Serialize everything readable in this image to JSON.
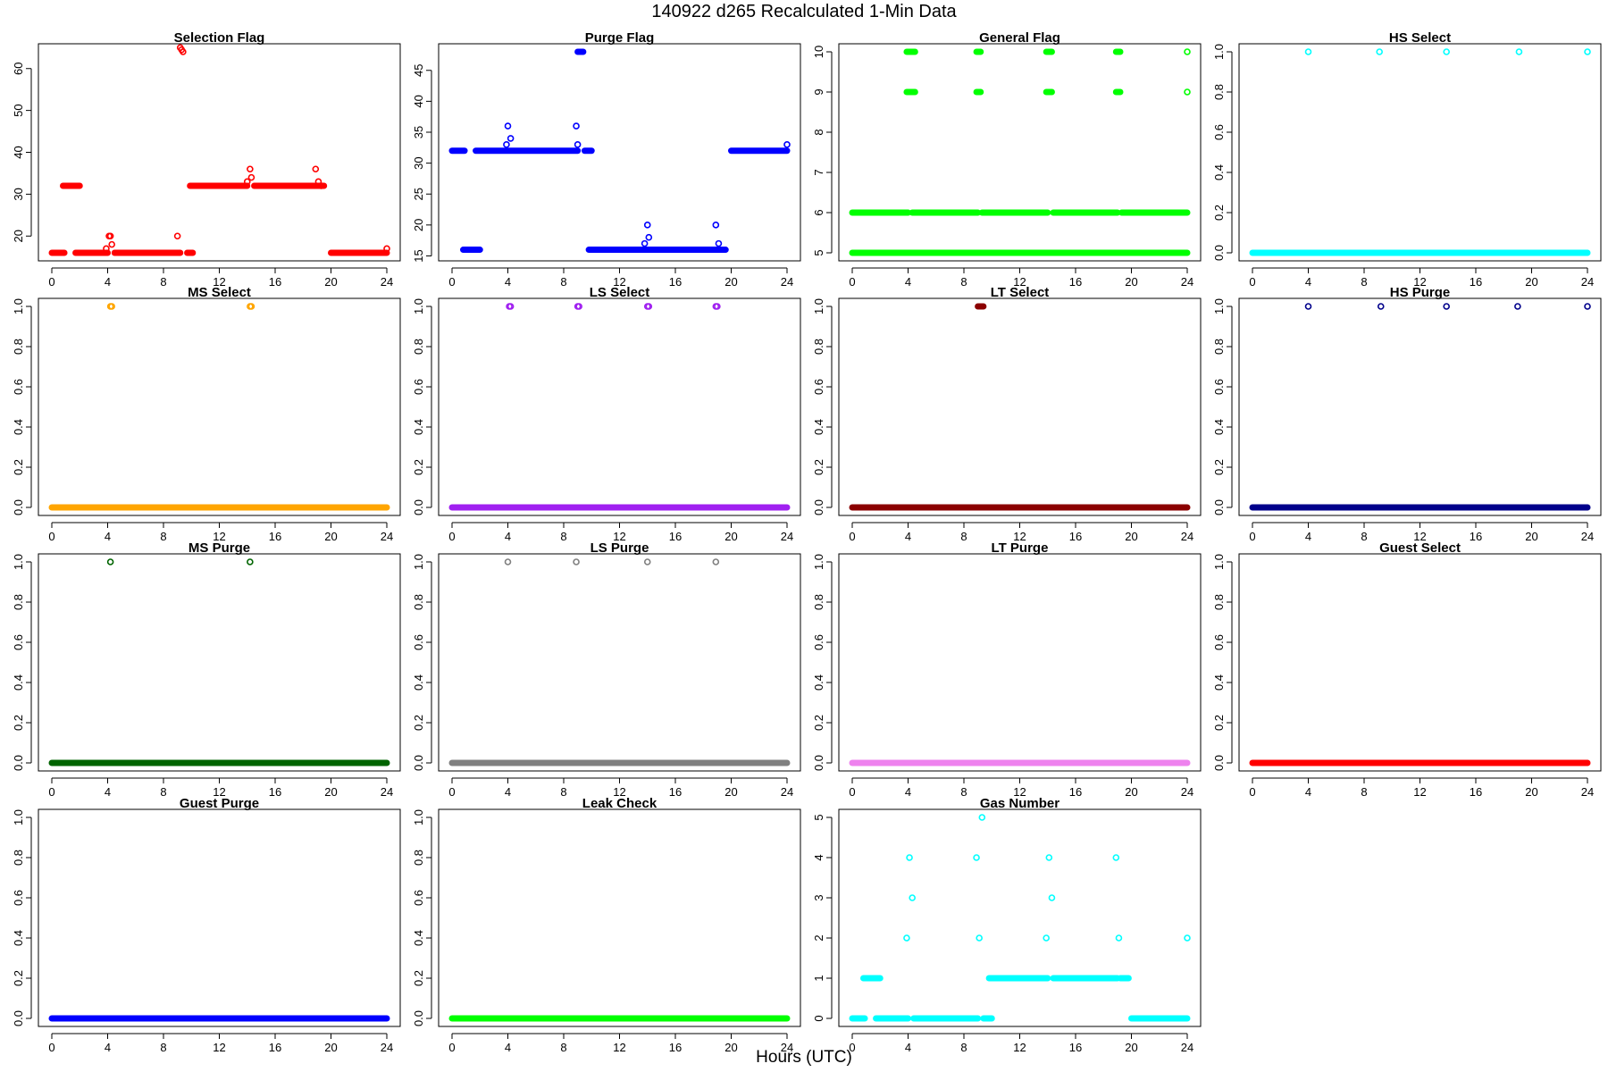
{
  "page": {
    "title": "140922   d265   Recalculated 1-Min Data",
    "xlabel": "Hours (UTC)"
  },
  "chart_data": [
    {
      "type": "scatter",
      "title": "Selection Flag",
      "color": "#ff0000",
      "xlim": [
        0,
        24
      ],
      "xticks": [
        0,
        4,
        8,
        12,
        16,
        20,
        24
      ],
      "ylim": [
        16,
        64
      ],
      "yticks": [
        20,
        30,
        40,
        50,
        60
      ],
      "runs": [
        [
          0,
          0.9,
          16
        ],
        [
          0.8,
          2,
          32
        ],
        [
          1.7,
          4,
          16
        ],
        [
          4.5,
          9.2,
          16
        ],
        [
          9.7,
          10.1,
          16
        ],
        [
          9.9,
          14,
          32
        ],
        [
          14.5,
          19.5,
          32
        ],
        [
          20,
          24,
          16
        ]
      ],
      "points": [
        [
          4.1,
          20
        ],
        [
          4.2,
          20
        ],
        [
          3.9,
          17
        ],
        [
          4.3,
          18
        ],
        [
          9.0,
          20
        ],
        [
          9.2,
          65
        ],
        [
          9.3,
          64.5
        ],
        [
          9.4,
          64
        ],
        [
          14,
          33
        ],
        [
          14.2,
          36
        ],
        [
          14.3,
          34
        ],
        [
          18.9,
          36
        ],
        [
          19.1,
          33
        ],
        [
          19.3,
          32
        ],
        [
          24,
          17
        ]
      ]
    },
    {
      "type": "scatter",
      "title": "Purge Flag",
      "color": "#0000ff",
      "xlim": [
        0,
        24
      ],
      "xticks": [
        0,
        4,
        8,
        12,
        16,
        20,
        24
      ],
      "ylim": [
        15.5,
        48
      ],
      "yticks": [
        15,
        20,
        25,
        30,
        35,
        40,
        45
      ],
      "runs": [
        [
          0,
          0.9,
          32
        ],
        [
          0.8,
          2,
          16
        ],
        [
          1.7,
          9,
          32
        ],
        [
          9,
          9.4,
          48
        ],
        [
          9.5,
          10,
          32
        ],
        [
          9.8,
          19.6,
          16
        ],
        [
          20,
          24,
          32
        ]
      ],
      "points": [
        [
          3.9,
          33
        ],
        [
          4.0,
          36
        ],
        [
          4.2,
          34
        ],
        [
          8.9,
          36
        ],
        [
          9.0,
          33
        ],
        [
          13.8,
          17
        ],
        [
          14.0,
          20
        ],
        [
          14.1,
          18
        ],
        [
          18.9,
          20
        ],
        [
          19.1,
          17
        ],
        [
          24,
          33
        ]
      ]
    },
    {
      "type": "scatter",
      "title": "General Flag",
      "color": "#00ff00",
      "xlim": [
        0,
        24
      ],
      "xticks": [
        0,
        4,
        8,
        12,
        16,
        20,
        24
      ],
      "ylim": [
        5,
        10
      ],
      "yticks": [
        5,
        6,
        7,
        8,
        9,
        10
      ],
      "runs": [
        [
          0,
          24,
          5
        ],
        [
          0,
          4,
          6
        ],
        [
          4.3,
          9,
          6
        ],
        [
          9.3,
          14,
          6
        ],
        [
          14.4,
          19,
          6
        ],
        [
          19.3,
          24,
          6
        ],
        [
          3.9,
          4.5,
          9
        ],
        [
          8.9,
          9.2,
          9
        ],
        [
          13.9,
          14.3,
          9
        ],
        [
          18.9,
          19.2,
          9
        ],
        [
          3.9,
          4.5,
          10
        ],
        [
          8.9,
          9.2,
          10
        ],
        [
          13.9,
          14.3,
          10
        ],
        [
          18.9,
          19.2,
          10
        ]
      ],
      "points": [
        [
          24,
          9
        ],
        [
          24,
          10
        ]
      ]
    },
    {
      "type": "scatter",
      "title": "HS Select",
      "color": "#00ffff",
      "xlim": [
        0,
        24
      ],
      "xticks": [
        0,
        4,
        8,
        12,
        16,
        20,
        24
      ],
      "ylim": [
        0,
        1
      ],
      "yticks": [
        0.0,
        0.2,
        0.4,
        0.6,
        0.8,
        1.0
      ],
      "runs": [
        [
          0,
          24,
          0
        ]
      ],
      "points": [
        [
          4,
          1
        ],
        [
          9.1,
          1
        ],
        [
          13.9,
          1
        ],
        [
          19.1,
          1
        ],
        [
          24,
          1
        ]
      ]
    },
    {
      "type": "scatter",
      "title": "MS Select",
      "color": "#ffa500",
      "xlim": [
        0,
        24
      ],
      "xticks": [
        0,
        4,
        8,
        12,
        16,
        20,
        24
      ],
      "ylim": [
        0,
        1
      ],
      "yticks": [
        0.0,
        0.2,
        0.4,
        0.6,
        0.8,
        1.0
      ],
      "runs": [
        [
          0,
          24,
          0
        ]
      ],
      "points": [
        [
          4.2,
          1
        ],
        [
          4.3,
          1
        ],
        [
          14.2,
          1
        ],
        [
          14.3,
          1
        ]
      ]
    },
    {
      "type": "scatter",
      "title": "LS Select",
      "color": "#a020f0",
      "xlim": [
        0,
        24
      ],
      "xticks": [
        0,
        4,
        8,
        12,
        16,
        20,
        24
      ],
      "ylim": [
        0,
        1
      ],
      "yticks": [
        0.0,
        0.2,
        0.4,
        0.6,
        0.8,
        1.0
      ],
      "runs": [
        [
          0,
          24,
          0
        ]
      ],
      "points": [
        [
          4.1,
          1
        ],
        [
          4.2,
          1
        ],
        [
          9.0,
          1
        ],
        [
          9.1,
          1
        ],
        [
          14.0,
          1
        ],
        [
          14.1,
          1
        ],
        [
          18.9,
          1
        ],
        [
          19.0,
          1
        ]
      ]
    },
    {
      "type": "scatter",
      "title": "LT Select",
      "color": "#8b0000",
      "xlim": [
        0,
        24
      ],
      "xticks": [
        0,
        4,
        8,
        12,
        16,
        20,
        24
      ],
      "ylim": [
        0,
        1
      ],
      "yticks": [
        0.0,
        0.2,
        0.4,
        0.6,
        0.8,
        1.0
      ],
      "runs": [
        [
          0,
          24,
          0
        ],
        [
          9.0,
          9.4,
          1
        ]
      ],
      "points": []
    },
    {
      "type": "scatter",
      "title": "HS Purge",
      "color": "#00008b",
      "xlim": [
        0,
        24
      ],
      "xticks": [
        0,
        4,
        8,
        12,
        16,
        20,
        24
      ],
      "ylim": [
        0,
        1
      ],
      "yticks": [
        0.0,
        0.2,
        0.4,
        0.6,
        0.8,
        1.0
      ],
      "runs": [
        [
          0,
          24,
          0
        ]
      ],
      "points": [
        [
          4,
          1
        ],
        [
          9.2,
          1
        ],
        [
          13.9,
          1
        ],
        [
          19.0,
          1
        ],
        [
          24,
          1
        ]
      ]
    },
    {
      "type": "scatter",
      "title": "MS Purge",
      "color": "#006400",
      "xlim": [
        0,
        24
      ],
      "xticks": [
        0,
        4,
        8,
        12,
        16,
        20,
        24
      ],
      "ylim": [
        0,
        1
      ],
      "yticks": [
        0.0,
        0.2,
        0.4,
        0.6,
        0.8,
        1.0
      ],
      "runs": [
        [
          0,
          24,
          0
        ]
      ],
      "points": [
        [
          4.2,
          1
        ],
        [
          14.2,
          1
        ]
      ]
    },
    {
      "type": "scatter",
      "title": "LS Purge",
      "color": "#808080",
      "xlim": [
        0,
        24
      ],
      "xticks": [
        0,
        4,
        8,
        12,
        16,
        20,
        24
      ],
      "ylim": [
        0,
        1
      ],
      "yticks": [
        0.0,
        0.2,
        0.4,
        0.6,
        0.8,
        1.0
      ],
      "runs": [
        [
          0,
          24,
          0
        ]
      ],
      "points": [
        [
          4,
          1
        ],
        [
          8.9,
          1
        ],
        [
          14.0,
          1
        ],
        [
          18.9,
          1
        ]
      ]
    },
    {
      "type": "scatter",
      "title": "LT Purge",
      "color": "#ee82ee",
      "xlim": [
        0,
        24
      ],
      "xticks": [
        0,
        4,
        8,
        12,
        16,
        20,
        24
      ],
      "ylim": [
        0,
        1
      ],
      "yticks": [
        0.0,
        0.2,
        0.4,
        0.6,
        0.8,
        1.0
      ],
      "runs": [
        [
          0,
          24,
          0
        ]
      ],
      "points": []
    },
    {
      "type": "scatter",
      "title": "Guest Select",
      "color": "#ff0000",
      "xlim": [
        0,
        24
      ],
      "xticks": [
        0,
        4,
        8,
        12,
        16,
        20,
        24
      ],
      "ylim": [
        0,
        1
      ],
      "yticks": [
        0.0,
        0.2,
        0.4,
        0.6,
        0.8,
        1.0
      ],
      "runs": [
        [
          0,
          24,
          0
        ]
      ],
      "points": []
    },
    {
      "type": "scatter",
      "title": "Guest Purge",
      "color": "#0000ff",
      "xlim": [
        0,
        24
      ],
      "xticks": [
        0,
        4,
        8,
        12,
        16,
        20,
        24
      ],
      "ylim": [
        0,
        1
      ],
      "yticks": [
        0.0,
        0.2,
        0.4,
        0.6,
        0.8,
        1.0
      ],
      "runs": [
        [
          0,
          24,
          0
        ]
      ],
      "points": []
    },
    {
      "type": "scatter",
      "title": "Leak Check",
      "color": "#00ff00",
      "xlim": [
        0,
        24
      ],
      "xticks": [
        0,
        4,
        8,
        12,
        16,
        20,
        24
      ],
      "ylim": [
        0,
        1
      ],
      "yticks": [
        0.0,
        0.2,
        0.4,
        0.6,
        0.8,
        1.0
      ],
      "runs": [
        [
          0,
          24,
          0
        ]
      ],
      "points": []
    },
    {
      "type": "scatter",
      "title": "Gas Number",
      "color": "#00ffff",
      "xlim": [
        0,
        24
      ],
      "xticks": [
        0,
        4,
        8,
        12,
        16,
        20,
        24
      ],
      "ylim": [
        0,
        5
      ],
      "yticks": [
        0,
        1,
        2,
        3,
        4,
        5
      ],
      "runs": [
        [
          0,
          0.9,
          0
        ],
        [
          0.8,
          2,
          1
        ],
        [
          1.7,
          4,
          0
        ],
        [
          4.4,
          9,
          0
        ],
        [
          9.4,
          10,
          0
        ],
        [
          9.8,
          14,
          1
        ],
        [
          14.4,
          19,
          1
        ],
        [
          19.2,
          19.8,
          1
        ],
        [
          20,
          24,
          0
        ]
      ],
      "points": [
        [
          3.9,
          2
        ],
        [
          4.1,
          4
        ],
        [
          4.3,
          3
        ],
        [
          8.9,
          4
        ],
        [
          9.1,
          2
        ],
        [
          9.3,
          5
        ],
        [
          13.9,
          2
        ],
        [
          14.1,
          4
        ],
        [
          14.3,
          3
        ],
        [
          18.9,
          4
        ],
        [
          19.1,
          2
        ],
        [
          24,
          2
        ]
      ]
    }
  ]
}
